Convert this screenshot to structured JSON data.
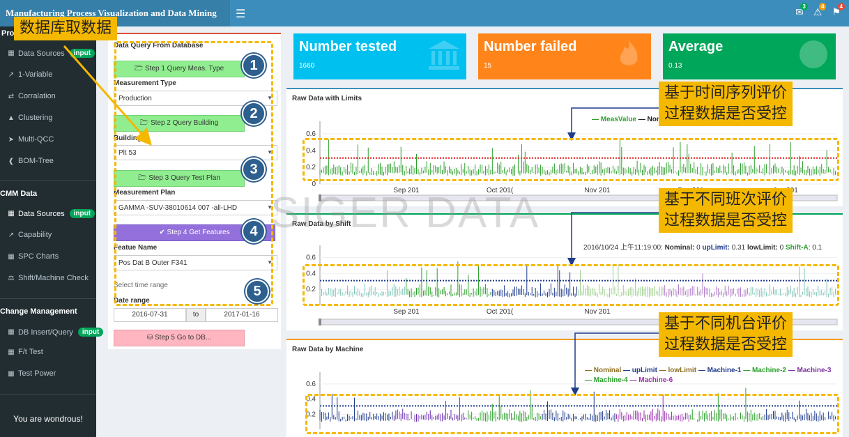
{
  "app": {
    "title": "Manufacturing Process Visualization and Data Mining",
    "menu_icon": "hamburger-icon",
    "notifications": [
      {
        "icon": "envelope-icon",
        "count": "3",
        "color": "#00a65a"
      },
      {
        "icon": "warning-icon",
        "count": "4",
        "color": "#f39c12"
      },
      {
        "icon": "flag-icon",
        "count": "4",
        "color": "#dd4b39"
      }
    ]
  },
  "sidebar": {
    "section1": "Pro",
    "items1": [
      {
        "label": "Data Sources",
        "badge": "input"
      },
      {
        "label": "1-Variable"
      },
      {
        "label": "Corralation"
      },
      {
        "label": "Clustering"
      },
      {
        "label": "Multi-QCC"
      },
      {
        "label": "BOM-Tree"
      }
    ],
    "section2": "CMM Data",
    "items2": [
      {
        "label": "Data Sources",
        "badge": "input"
      },
      {
        "label": "Capability"
      },
      {
        "label": "SPC Charts"
      },
      {
        "label": "Shift/Machine Check"
      }
    ],
    "section3": "Change Management",
    "items3": [
      {
        "label": "DB Insert/Query",
        "badge": "input"
      },
      {
        "label": "F/t Test"
      },
      {
        "label": "Test Power"
      }
    ],
    "footer": "You are wondrous!"
  },
  "query": {
    "title": "Data Query From Database",
    "step1": "Step 1 Query Meas. Type",
    "measurement_type_label": "Measurement Type",
    "measurement_type": "Production",
    "step2": "Step 2 Query Building",
    "building_label": "Building",
    "building": "Plt 53",
    "step3": "Step 3 Query Test Plan",
    "plan_label": "Measurement Plan",
    "plan": "GAMMA -SUV-38010614 007 -all-LHD",
    "step4": "Step 4 Get Features",
    "feature_label": "Featue Name",
    "feature": "Pos Dat B Outer F341",
    "time_note": "Select time range",
    "date_label": "Date range",
    "date_from": "2016-07-31",
    "date_to_label": "to",
    "date_to": "2017-01-16",
    "step5": "Step 5 Go to DB..."
  },
  "stats": [
    {
      "label": "Number tested",
      "value": "1660",
      "color": "#00c0ef",
      "icon": "bank-icon"
    },
    {
      "label": "Number failed",
      "value": "15",
      "color": "#ff851b",
      "icon": "fire-icon"
    },
    {
      "label": "Average",
      "value": "0.13",
      "color": "#00a65a",
      "icon": "globe-icon"
    }
  ],
  "charts": {
    "c1": {
      "title": "Raw Data with Limits",
      "legend": [
        "— MeasValue",
        "— Nomi"
      ],
      "legend_colors": [
        "#2ca02c",
        "#222222"
      ],
      "x_ticks": [
        "Sep 201",
        "Oct 201(",
        "Nov 201",
        "Dec 201",
        "Jan 201"
      ],
      "y_ticks": [
        "0.6",
        "0.4",
        "0.2",
        "0"
      ]
    },
    "c2": {
      "title": "Raw Data by Shift",
      "hover": {
        "time": "2016/10/24 上午11:19:00:",
        "nominal_key": "Nominal:",
        "nominal": "0",
        "up_key": "upLimit:",
        "up": "0.31",
        "low_key": "lowLimit:",
        "low": "0",
        "shift_key": "Shift-A",
        "shift": ": 0.1"
      },
      "x_ticks": [
        "Sep 201",
        "Oct 201(",
        "Nov 201"
      ],
      "y_ticks": [
        "0.6",
        "0.4",
        "0.2"
      ]
    },
    "c3": {
      "title": "Raw Data by Machine",
      "legend1": [
        "— Nominal",
        "— upLimit",
        "— lowLimit",
        "— Machine-1",
        "— Machine-2",
        "— Machine-3"
      ],
      "legend1_colors": [
        "#8c6d1f",
        "#1f3b8c",
        "#8c6d1f",
        "#1f3b8c",
        "#2ca02c",
        "#7b2f9e"
      ],
      "legend2": [
        "— Machine-4",
        "— Machine-6"
      ],
      "legend2_colors": [
        "#2ca02c",
        "#9b2fae"
      ],
      "y_ticks": [
        "0.6",
        "0.4",
        "0.2"
      ]
    }
  },
  "chart_data": [
    {
      "type": "line",
      "title": "Raw Data with Limits",
      "series": [
        {
          "name": "MeasValue",
          "color": "#2ca02c"
        },
        {
          "name": "Nomi",
          "color": "#222222"
        }
      ],
      "upper_limit": 0.31,
      "ylim": [
        0,
        0.7
      ]
    },
    {
      "type": "line",
      "title": "Raw Data by Shift",
      "upper_limit": 0.31,
      "ylim": [
        0,
        0.7
      ]
    },
    {
      "type": "line",
      "title": "Raw Data by Machine",
      "series": [
        {
          "name": "Nominal"
        },
        {
          "name": "upLimit"
        },
        {
          "name": "lowLimit"
        },
        {
          "name": "Machine-1"
        },
        {
          "name": "Machine-2"
        },
        {
          "name": "Machine-3"
        },
        {
          "name": "Machine-4"
        },
        {
          "name": "Machine-6"
        }
      ],
      "upper_limit": 0.31,
      "ylim": [
        0,
        0.7
      ]
    }
  ],
  "annotations": {
    "db": "数据库取数据",
    "time": [
      "基于时间序列评价",
      "过程数据是否受控"
    ],
    "shift": [
      "基于不同班次评价",
      "过程数据是否受控"
    ],
    "machine": [
      "基于不同机台评价",
      "过程数据是否受控"
    ],
    "steps": [
      "1",
      "2",
      "3",
      "4",
      "5"
    ]
  },
  "watermark": "SIGER DATA"
}
